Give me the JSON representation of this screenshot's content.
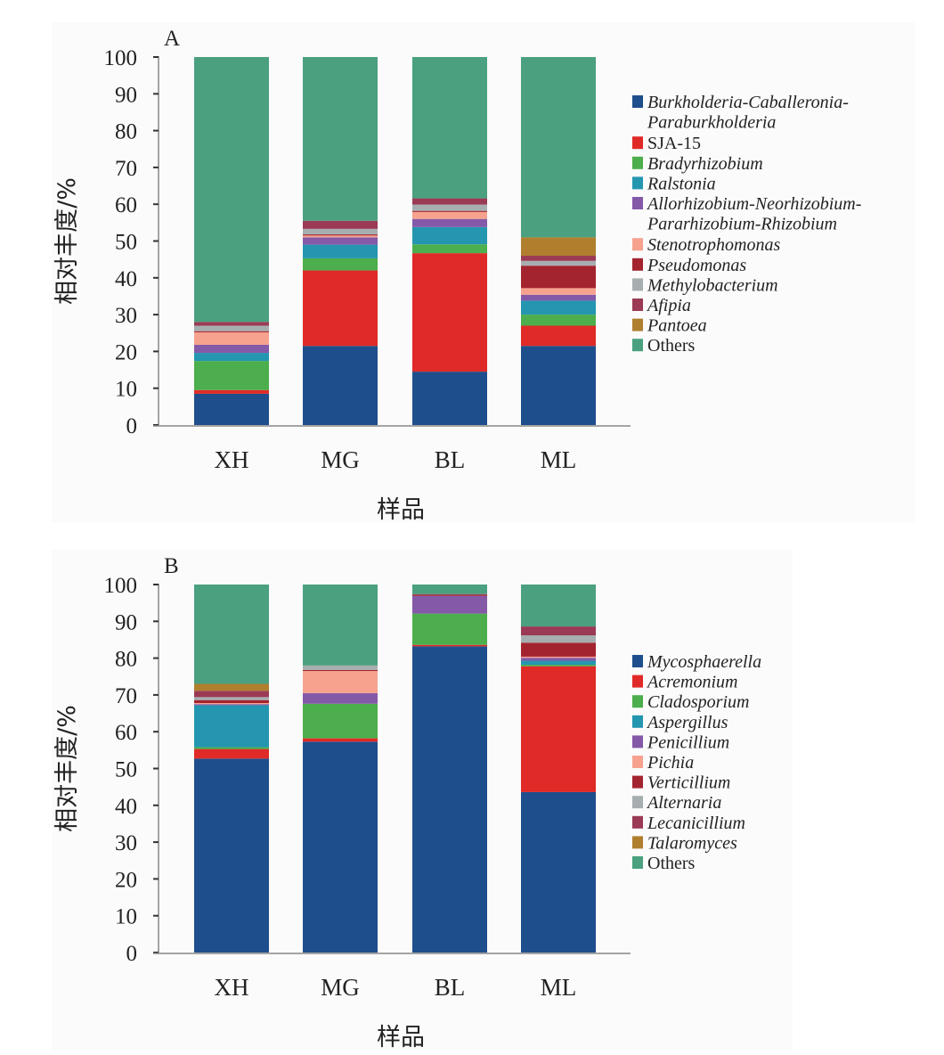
{
  "chart_data": [
    {
      "type": "bar",
      "stacked": true,
      "panel_label": "A",
      "title": "",
      "xlabel": "样品",
      "ylabel": "相对丰度/%",
      "ylim": [
        0,
        100
      ],
      "yticks": [
        0,
        10,
        20,
        30,
        40,
        50,
        60,
        70,
        80,
        90,
        100
      ],
      "grid": false,
      "legend_position": "right",
      "categories": [
        "XH",
        "MG",
        "BL",
        "ML"
      ],
      "series": [
        {
          "name": "Burkholderia-Caballeronia-Paraburkholderia",
          "legend_lines": [
            "Burkholderia-Caballeronia-",
            "Paraburkholderia"
          ],
          "italic": true,
          "color": "#1f4e8c",
          "values": [
            8.5,
            21.5,
            14.5,
            21.5
          ]
        },
        {
          "name": "SJA-15",
          "legend_lines": [
            "SJA-15"
          ],
          "italic": false,
          "color": "#e02a27",
          "values": [
            1.0,
            20.5,
            32.2,
            5.5
          ]
        },
        {
          "name": "Bradyrhizobium",
          "legend_lines": [
            "Bradyrhizobium"
          ],
          "italic": true,
          "color": "#4cae4c",
          "values": [
            7.9,
            3.3,
            2.4,
            3.0
          ]
        },
        {
          "name": "Ralstonia",
          "legend_lines": [
            "Ralstonia"
          ],
          "italic": true,
          "color": "#2596b0",
          "values": [
            2.2,
            3.7,
            4.7,
            3.8
          ]
        },
        {
          "name": "Allorhizobium-Neorhizobium-Pararhizobium-Rhizobium",
          "legend_lines": [
            "Allorhizobium-Neorhizobium-",
            "Pararhizobium-Rhizobium"
          ],
          "italic": true,
          "color": "#8459a8",
          "values": [
            2.2,
            2.0,
            2.2,
            1.6
          ]
        },
        {
          "name": "Stenotrophomonas",
          "legend_lines": [
            "Stenotrophomonas"
          ],
          "italic": true,
          "color": "#f6a28e",
          "values": [
            3.4,
            0.5,
            1.9,
            1.8
          ]
        },
        {
          "name": "Pseudomonas",
          "legend_lines": [
            "Pseudomonas"
          ],
          "italic": true,
          "color": "#a3242f",
          "values": [
            0.3,
            0.3,
            0.3,
            6.1
          ]
        },
        {
          "name": "Methylobacterium",
          "legend_lines": [
            "Methylobacterium"
          ],
          "italic": true,
          "color": "#a7aeb0",
          "values": [
            1.5,
            1.5,
            1.7,
            1.3
          ]
        },
        {
          "name": "Afipia",
          "legend_lines": [
            "Afipia"
          ],
          "italic": true,
          "color": "#9b3a55",
          "values": [
            1.0,
            2.2,
            1.7,
            1.4
          ]
        },
        {
          "name": "Pantoea",
          "legend_lines": [
            "Pantoea"
          ],
          "italic": true,
          "color": "#b07f2e",
          "values": [
            0,
            0,
            0,
            5.0
          ]
        },
        {
          "name": "Others",
          "legend_lines": [
            "Others"
          ],
          "italic": false,
          "color": "#4aa07f",
          "values": [
            72.0,
            44.5,
            38.4,
            49.0
          ]
        }
      ]
    },
    {
      "type": "bar",
      "stacked": true,
      "panel_label": "B",
      "title": "",
      "xlabel": "样品",
      "ylabel": "相对丰度/%",
      "ylim": [
        0,
        100
      ],
      "yticks": [
        0,
        10,
        20,
        30,
        40,
        50,
        60,
        70,
        80,
        90,
        100
      ],
      "grid": false,
      "legend_position": "right",
      "categories": [
        "XH",
        "MG",
        "BL",
        "ML"
      ],
      "series": [
        {
          "name": "Mycosphaerella",
          "legend_lines": [
            "Mycosphaerella"
          ],
          "italic": true,
          "color": "#1f4e8c",
          "values": [
            52.7,
            57.3,
            83.2,
            43.6
          ]
        },
        {
          "name": "Acremonium",
          "legend_lines": [
            "Acremonium"
          ],
          "italic": true,
          "color": "#e02a27",
          "values": [
            2.6,
            0.9,
            0.4,
            34.2
          ]
        },
        {
          "name": "Cladosporium",
          "legend_lines": [
            "Cladosporium"
          ],
          "italic": true,
          "color": "#4cae4c",
          "values": [
            0.5,
            9.4,
            8.5,
            0.4
          ]
        },
        {
          "name": "Aspergillus",
          "legend_lines": [
            "Aspergillus"
          ],
          "italic": true,
          "color": "#2596b0",
          "values": [
            11.4,
            0,
            0,
            1.1
          ]
        },
        {
          "name": "Penicillium",
          "legend_lines": [
            "Penicillium"
          ],
          "italic": true,
          "color": "#8459a8",
          "values": [
            0.3,
            2.9,
            4.8,
            0.8
          ]
        },
        {
          "name": "Pichia",
          "legend_lines": [
            "Pichia"
          ],
          "italic": true,
          "color": "#f6a28e",
          "values": [
            0.3,
            6.0,
            0,
            0.3
          ]
        },
        {
          "name": "Verticillium",
          "legend_lines": [
            "Verticillium"
          ],
          "italic": true,
          "color": "#a3242f",
          "values": [
            0.8,
            0.3,
            0.2,
            3.8
          ]
        },
        {
          "name": "Alternaria",
          "legend_lines": [
            "Alternaria"
          ],
          "italic": true,
          "color": "#a7aeb0",
          "values": [
            0.8,
            1.2,
            0,
            2.0
          ]
        },
        {
          "name": "Lecanicillium",
          "legend_lines": [
            "Lecanicillium"
          ],
          "italic": true,
          "color": "#9b3a55",
          "values": [
            1.7,
            0,
            0.3,
            2.4
          ]
        },
        {
          "name": "Talaromyces",
          "legend_lines": [
            "Talaromyces"
          ],
          "italic": true,
          "color": "#b07f2e",
          "values": [
            1.9,
            0,
            0,
            0
          ]
        },
        {
          "name": "Others",
          "legend_lines": [
            "Others"
          ],
          "italic": false,
          "color": "#4aa07f",
          "values": [
            27.0,
            22.0,
            2.6,
            11.4
          ]
        }
      ]
    }
  ]
}
